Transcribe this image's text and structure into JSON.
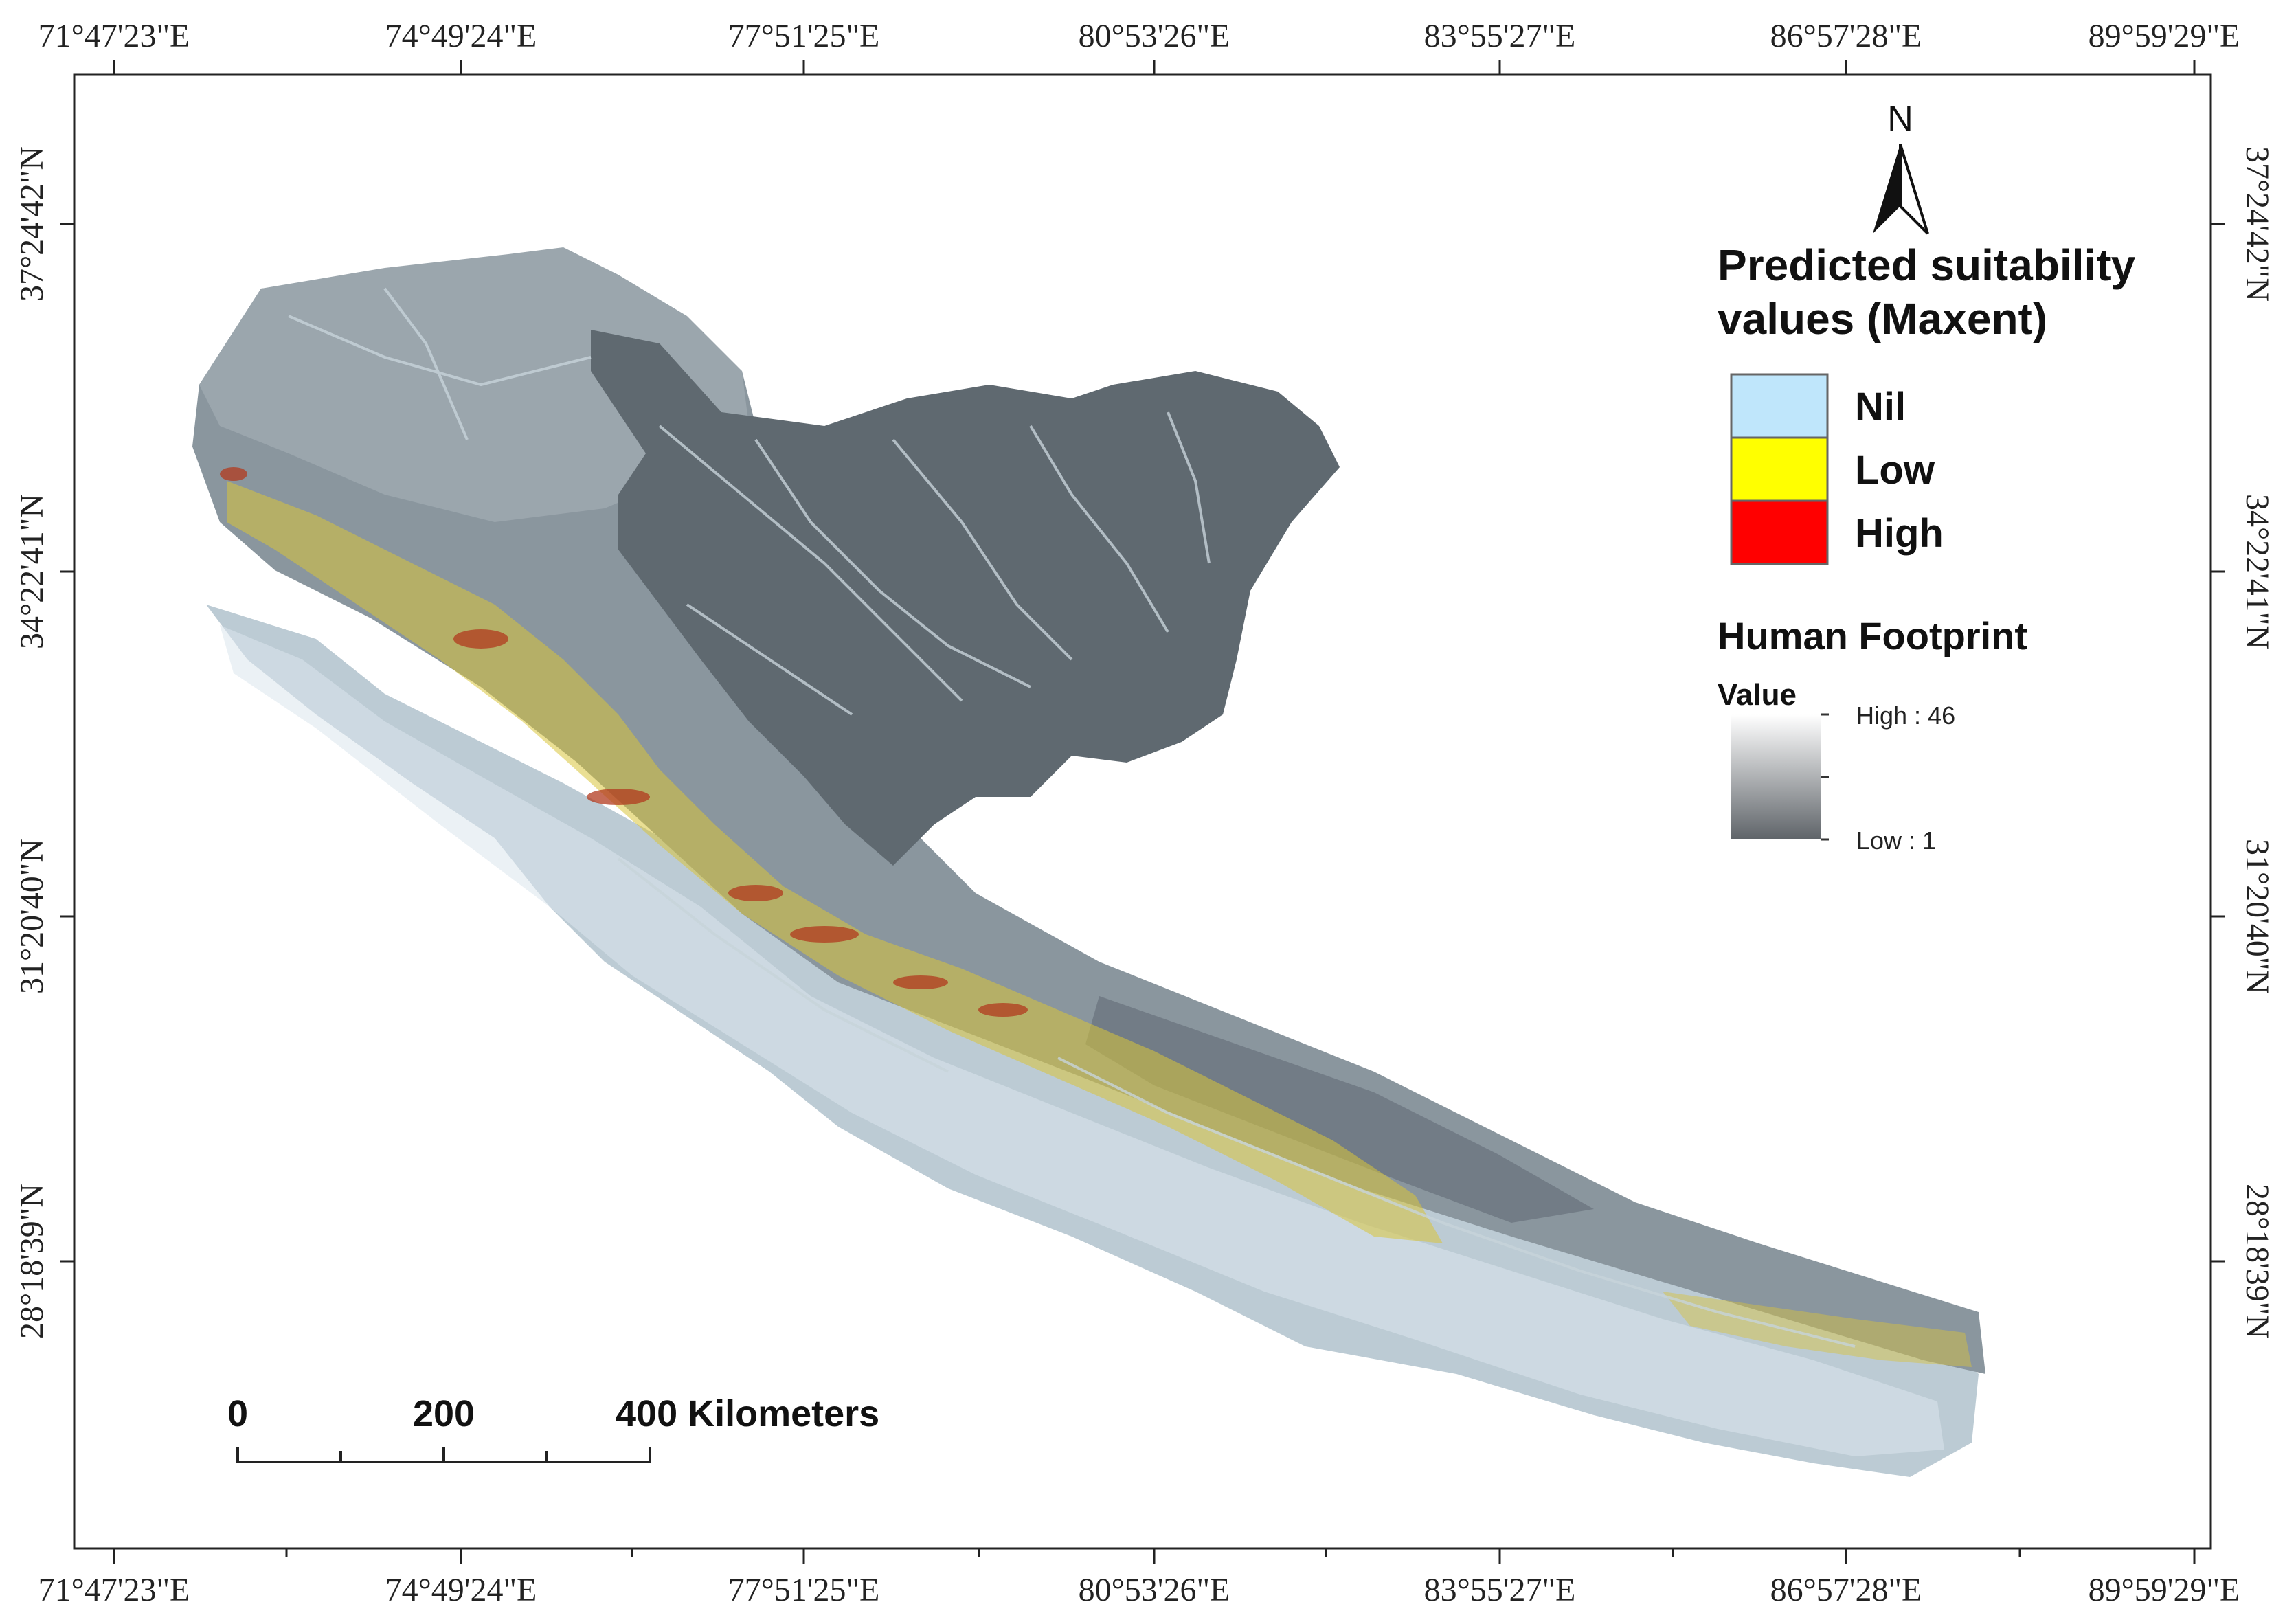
{
  "longitude_labels": [
    "71°47'23\"E",
    "74°49'24\"E",
    "77°51'25\"E",
    "80°53'26\"E",
    "83°55'27\"E",
    "86°57'28\"E",
    "89°59'29\"E"
  ],
  "latitude_labels": [
    "37°24'42\"N",
    "34°22'41\"N",
    "31°20'40\"N",
    "28°18'39\"N"
  ],
  "north_arrow": {
    "label": "N",
    "icon": "north-arrow-icon"
  },
  "legend": {
    "suitability_title_line1": "Predicted suitability",
    "suitability_title_line2": "values (Maxent)",
    "classes": [
      {
        "label": "Nil",
        "color": "#bfe6fb"
      },
      {
        "label": "Low",
        "color": "#ffff00"
      },
      {
        "label": "High",
        "color": "#ff0000"
      }
    ],
    "footprint_title": "Human Footprint",
    "value_header": "Value",
    "ramp_high_label": "High : 46",
    "ramp_low_label": "Low : 1",
    "ramp_high_color": "#ffffff",
    "ramp_low_color": "#5f6469"
  },
  "scale_bar": {
    "ticks": [
      "0",
      "200"
    ],
    "end_label": "400 Kilometers"
  },
  "colors": {
    "region_dark": "#5f6970",
    "region_mid": "#8a969e",
    "region_light": "#bccbd4",
    "region_lightest": "#dbe6ec",
    "suitability_low": "#d9c43a",
    "suitability_high": "#b23a1e",
    "drainage": "#c7d3da"
  }
}
